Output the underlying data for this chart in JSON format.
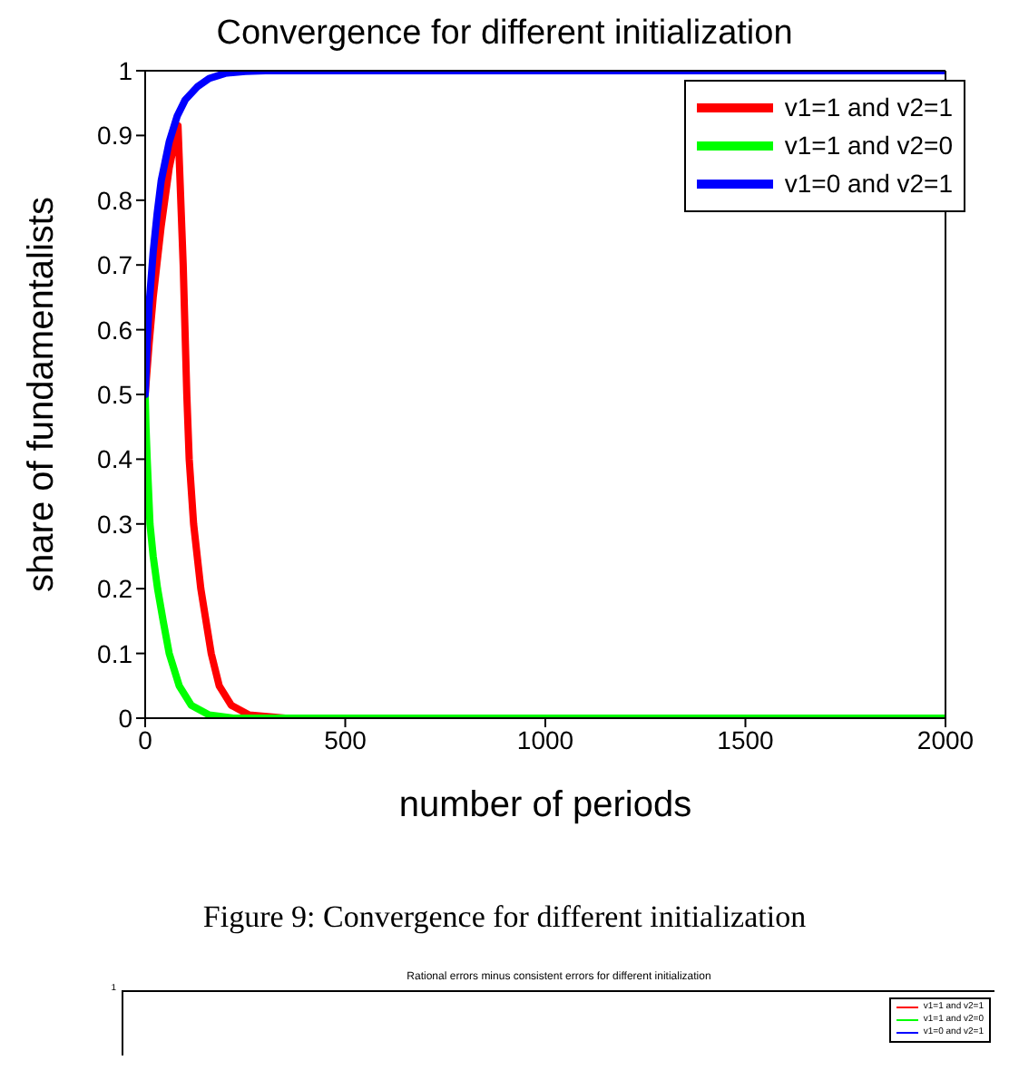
{
  "chart_data": [
    {
      "type": "line",
      "title": "Convergence for different initialization",
      "xlabel": "number of periods",
      "ylabel": "share of fundamentalists",
      "xlim": [
        0,
        2000
      ],
      "xticks": [
        0,
        500,
        1000,
        1500,
        2000
      ],
      "ylim": [
        0,
        1
      ],
      "yticks": [
        0,
        0.1,
        0.2,
        0.3,
        0.4,
        0.5,
        0.6,
        0.7,
        0.8,
        0.9,
        1
      ],
      "legend": "top right",
      "marker": "none",
      "line_style": "solid",
      "annotations": [
        "Figure 9: Convergence for different initialization"
      ],
      "series": [
        {
          "name": "v1=1 and v2=1",
          "color": "#ff0000",
          "x": [
            0,
            10,
            20,
            40,
            60,
            82,
            95,
            104,
            110,
            121,
            139,
            165,
            185,
            215,
            260,
            350,
            2000
          ],
          "values": [
            0.5,
            0.58,
            0.65,
            0.76,
            0.85,
            0.915,
            0.7,
            0.5,
            0.4,
            0.3,
            0.2,
            0.1,
            0.05,
            0.02,
            0.005,
            0,
            0
          ]
        },
        {
          "name": "v1=1 and v2=0",
          "color": "#00ff00",
          "x": [
            0,
            2,
            5,
            12,
            20,
            31,
            45,
            60,
            85,
            115,
            160,
            220,
            2000
          ],
          "values": [
            0.5,
            0.45,
            0.4,
            0.3,
            0.25,
            0.2,
            0.15,
            0.1,
            0.05,
            0.02,
            0.005,
            0,
            0
          ]
        },
        {
          "name": "v1=0 and v2=1",
          "color": "#0000ff",
          "x": [
            0,
            5,
            10,
            20,
            30,
            40,
            60,
            80,
            100,
            130,
            160,
            200,
            250,
            300,
            2000
          ],
          "values": [
            0.5,
            0.58,
            0.64,
            0.72,
            0.78,
            0.83,
            0.89,
            0.93,
            0.955,
            0.975,
            0.988,
            0.996,
            0.999,
            1,
            1
          ]
        }
      ]
    },
    {
      "type": "other",
      "title": "Rational errors minus consistent errors for different initialization",
      "annotations": [
        "1"
      ],
      "legend": "top right",
      "series": [
        {
          "name": "v1=1 and v2=1",
          "color": "#ff0000"
        },
        {
          "name": "v1=1 and v2=0",
          "color": "#00ff00"
        },
        {
          "name": "v1=0 and v2=1",
          "color": "#0000ff"
        }
      ]
    }
  ]
}
